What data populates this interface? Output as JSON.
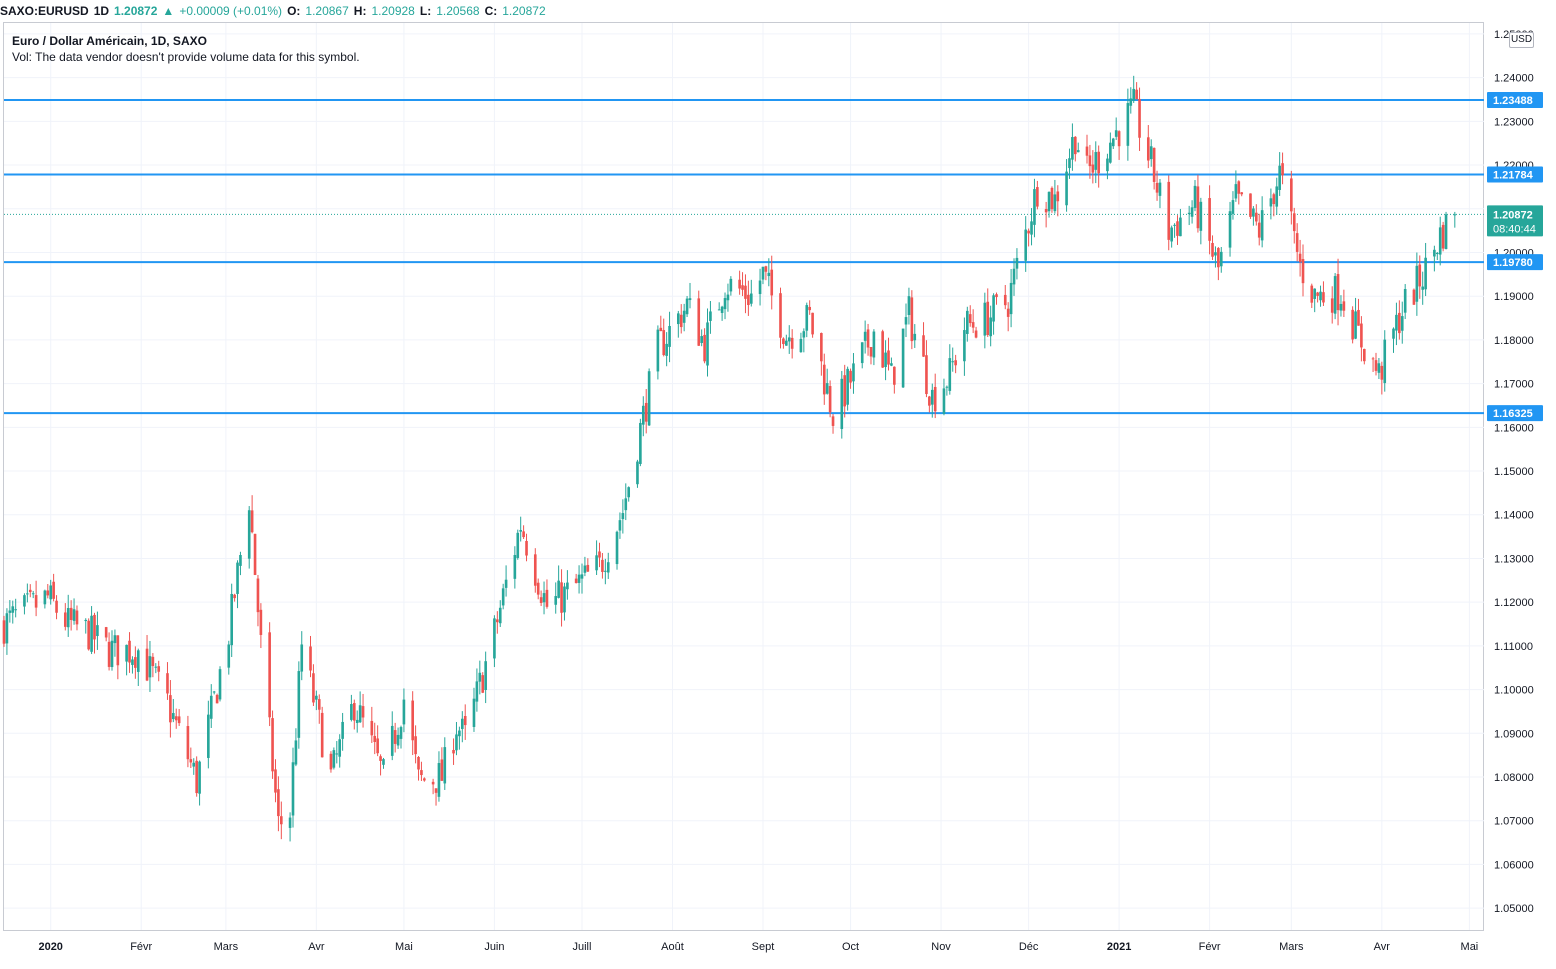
{
  "header": {
    "symbol": "SAXO:EURUSD",
    "interval": "1D",
    "last": "1.20872",
    "change_arrow": "▲",
    "change": "+0.00009 (+0.01%)",
    "o_label": "O:",
    "o_value": "1.20867",
    "h_label": "H:",
    "h_value": "1.20928",
    "l_label": "L:",
    "l_value": "1.20568",
    "c_label": "C:",
    "c_value": "1.20872"
  },
  "legend": {
    "title": "Euro / Dollar Américain, 1D, SAXO",
    "volume_note": "Vol: The data vendor doesn't provide volume data for this symbol."
  },
  "currency": "USD",
  "countdown": "08:40:44",
  "colors": {
    "up": "#26a69a",
    "down": "#ef5350",
    "hline": "#2196f3",
    "grid": "#f0f3fa",
    "price_label": "#26a69a"
  },
  "chart_data": {
    "type": "candlestick",
    "symbol": "EURUSD",
    "ylim": [
      1.045,
      1.2525
    ],
    "y_ticks": [
      "1.05000",
      "1.06000",
      "1.07000",
      "1.08000",
      "1.09000",
      "1.10000",
      "1.11000",
      "1.12000",
      "1.13000",
      "1.14000",
      "1.15000",
      "1.16000",
      "1.17000",
      "1.18000",
      "1.19000",
      "1.20000",
      "1.21000",
      "1.22000",
      "1.23000",
      "1.24000",
      "1.25000"
    ],
    "x_start": "2019-12-16",
    "x_end": "2021-05-06",
    "x_ticks": [
      {
        "date": "2020-01-01",
        "label": "2020",
        "bold": true
      },
      {
        "date": "2020-02-01",
        "label": "Févr",
        "bold": false
      },
      {
        "date": "2020-03-01",
        "label": "Mars",
        "bold": false
      },
      {
        "date": "2020-04-01",
        "label": "Avr",
        "bold": false
      },
      {
        "date": "2020-05-01",
        "label": "Mai",
        "bold": false
      },
      {
        "date": "2020-06-01",
        "label": "Juin",
        "bold": false
      },
      {
        "date": "2020-07-01",
        "label": "Juill",
        "bold": false
      },
      {
        "date": "2020-08-01",
        "label": "Août",
        "bold": false
      },
      {
        "date": "2020-09-01",
        "label": "Sept",
        "bold": false
      },
      {
        "date": "2020-10-01",
        "label": "Oct",
        "bold": false
      },
      {
        "date": "2020-11-01",
        "label": "Nov",
        "bold": false
      },
      {
        "date": "2020-12-01",
        "label": "Déc",
        "bold": false
      },
      {
        "date": "2021-01-01",
        "label": "2021",
        "bold": true
      },
      {
        "date": "2021-02-01",
        "label": "Févr",
        "bold": false
      },
      {
        "date": "2021-03-01",
        "label": "Mars",
        "bold": false
      },
      {
        "date": "2021-04-01",
        "label": "Avr",
        "bold": false
      },
      {
        "date": "2021-05-01",
        "label": "Mai",
        "bold": false
      }
    ],
    "horizontal_lines": [
      {
        "price": 1.23488,
        "label": "1.23488"
      },
      {
        "price": 1.21784,
        "label": "1.21784"
      },
      {
        "price": 1.1978,
        "label": "1.19780"
      },
      {
        "price": 1.16325,
        "label": "1.16325"
      }
    ],
    "last_price": 1.20872,
    "last_price_label": "1.20872",
    "close_path": [
      [
        "2019-12-16",
        1.115
      ],
      [
        "2019-12-31",
        1.121
      ],
      [
        "2020-01-07",
        1.115
      ],
      [
        "2020-01-14",
        1.113
      ],
      [
        "2020-01-21",
        1.109
      ],
      [
        "2020-01-31",
        1.109
      ],
      [
        "2020-02-10",
        1.097
      ],
      [
        "2020-02-19",
        1.081
      ],
      [
        "2020-02-20",
        1.079
      ],
      [
        "2020-03-02",
        1.113
      ],
      [
        "2020-03-09",
        1.144
      ],
      [
        "2020-03-13",
        1.11
      ],
      [
        "2020-03-19",
        1.069
      ],
      [
        "2020-03-23",
        1.072
      ],
      [
        "2020-03-27",
        1.11
      ],
      [
        "2020-04-06",
        1.08
      ],
      [
        "2020-04-14",
        1.097
      ],
      [
        "2020-04-24",
        1.08
      ],
      [
        "2020-05-01",
        1.098
      ],
      [
        "2020-05-06",
        1.079
      ],
      [
        "2020-05-14",
        1.08
      ],
      [
        "2020-05-19",
        1.092
      ],
      [
        "2020-05-22",
        1.089
      ],
      [
        "2020-06-01",
        1.113
      ],
      [
        "2020-06-10",
        1.138
      ],
      [
        "2020-06-19",
        1.119
      ],
      [
        "2020-06-26",
        1.122
      ],
      [
        "2020-07-07",
        1.128
      ],
      [
        "2020-07-15",
        1.141
      ],
      [
        "2020-07-27",
        1.178
      ],
      [
        "2020-08-06",
        1.188
      ],
      [
        "2020-08-12",
        1.179
      ],
      [
        "2020-08-19",
        1.193
      ],
      [
        "2020-08-28",
        1.19
      ],
      [
        "2020-09-01",
        1.195
      ],
      [
        "2020-09-09",
        1.181
      ],
      [
        "2020-09-17",
        1.185
      ],
      [
        "2020-09-25",
        1.163
      ],
      [
        "2020-10-02",
        1.172
      ],
      [
        "2020-10-09",
        1.182
      ],
      [
        "2020-10-15",
        1.171
      ],
      [
        "2020-10-21",
        1.186
      ],
      [
        "2020-10-29",
        1.167
      ],
      [
        "2020-11-04",
        1.172
      ],
      [
        "2020-11-09",
        1.183
      ],
      [
        "2020-11-17",
        1.185
      ],
      [
        "2020-11-24",
        1.189
      ],
      [
        "2020-12-01",
        1.207
      ],
      [
        "2020-12-04",
        1.215
      ],
      [
        "2020-12-10",
        1.212
      ],
      [
        "2020-12-17",
        1.227
      ],
      [
        "2020-12-21",
        1.218
      ],
      [
        "2021-01-06",
        1.233
      ],
      [
        "2021-01-12",
        1.22
      ],
      [
        "2021-01-18",
        1.205
      ],
      [
        "2021-01-27",
        1.211
      ],
      [
        "2021-02-04",
        1.196
      ],
      [
        "2021-02-10",
        1.212
      ],
      [
        "2021-02-18",
        1.205
      ],
      [
        "2021-02-25",
        1.218
      ],
      [
        "2021-03-04",
        1.197
      ],
      [
        "2021-03-09",
        1.19
      ],
      [
        "2021-03-18",
        1.191
      ],
      [
        "2021-03-24",
        1.181
      ],
      [
        "2021-03-31",
        1.172
      ],
      [
        "2021-04-08",
        1.187
      ],
      [
        "2021-04-16",
        1.196
      ],
      [
        "2021-04-21",
        1.204
      ],
      [
        "2021-04-26",
        1.2087
      ]
    ]
  }
}
